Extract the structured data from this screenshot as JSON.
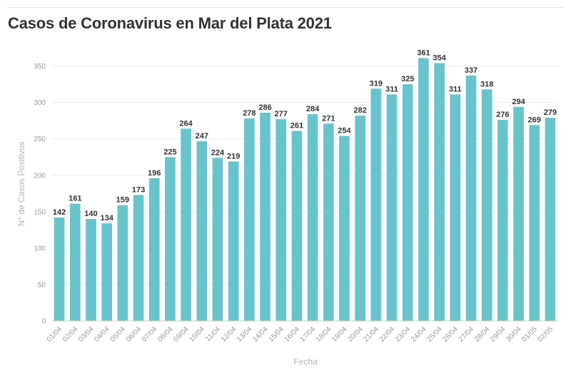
{
  "chart_data": {
    "type": "bar",
    "title": "Casos de Coronavirus en Mar del Plata 2021",
    "xlabel": "Fecha",
    "ylabel": "N° de Casos Positivos",
    "ylim": [
      0,
      380
    ],
    "yticks": [
      0,
      50,
      100,
      150,
      200,
      250,
      300,
      350
    ],
    "grid": true,
    "bar_color": "#67c4cc",
    "categories": [
      "01/04",
      "02/04",
      "03/04",
      "04/04",
      "05/04",
      "06/04",
      "07/04",
      "08/04",
      "09/04",
      "10/04",
      "11/04",
      "12/04",
      "13/04",
      "14/04",
      "15/04",
      "16/04",
      "17/04",
      "18/04",
      "19/04",
      "20/04",
      "21/04",
      "22/04",
      "23/04",
      "24/04",
      "25/04",
      "26/04",
      "27/04",
      "28/04",
      "29/04",
      "30/04",
      "01/05",
      "02/05"
    ],
    "values": [
      142,
      161,
      140,
      134,
      159,
      173,
      196,
      225,
      264,
      247,
      224,
      219,
      278,
      286,
      277,
      261,
      284,
      271,
      254,
      282,
      319,
      311,
      325,
      361,
      354,
      311,
      337,
      318,
      276,
      294,
      269,
      279
    ]
  }
}
